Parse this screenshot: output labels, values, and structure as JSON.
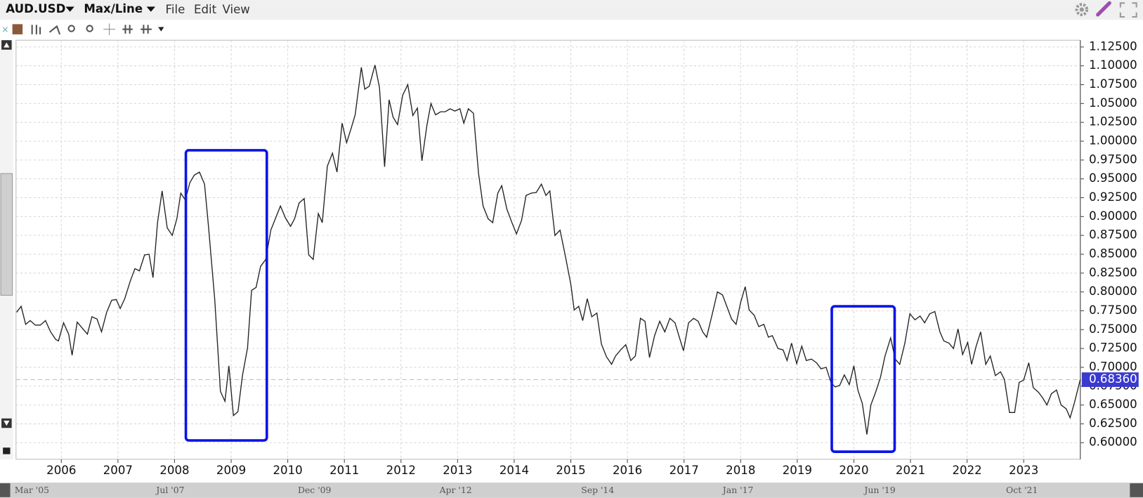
{
  "toolbar": {
    "symbol": "AUD.USD",
    "mode": "Max/Line",
    "menu": [
      "File",
      "Edit",
      "View"
    ]
  },
  "navigator": {
    "labels": [
      "Mar '05",
      "Jul '07",
      "Dec '09",
      "Apr '12",
      "Sep '14",
      "Jan '17",
      "Jun '19",
      "Oct '21"
    ]
  },
  "chart_data": {
    "type": "line",
    "color": "#222222",
    "xlim": [
      2005.2,
      2024.0
    ],
    "ylim": [
      0.578,
      1.134
    ],
    "xticks": [
      2006,
      2007,
      2008,
      2009,
      2010,
      2011,
      2012,
      2013,
      2014,
      2015,
      2016,
      2017,
      2018,
      2019,
      2020,
      2021,
      2022,
      2023
    ],
    "yticks": [
      {
        "value": 0.6,
        "label": "0.60000"
      },
      {
        "value": 0.625,
        "label": "0.62500"
      },
      {
        "value": 0.65,
        "label": "0.65000"
      },
      {
        "value": 0.675,
        "label": "0.67500"
      },
      {
        "value": 0.7,
        "label": "0.70000"
      },
      {
        "value": 0.725,
        "label": "0.72500"
      },
      {
        "value": 0.75,
        "label": "0.75000"
      },
      {
        "value": 0.775,
        "label": "0.77500"
      },
      {
        "value": 0.8,
        "label": "0.80000"
      },
      {
        "value": 0.825,
        "label": "0.82500"
      },
      {
        "value": 0.85,
        "label": "0.85000"
      },
      {
        "value": 0.875,
        "label": "0.87500"
      },
      {
        "value": 0.9,
        "label": "0.90000"
      },
      {
        "value": 0.925,
        "label": "0.92500"
      },
      {
        "value": 0.95,
        "label": "0.95000"
      },
      {
        "value": 0.975,
        "label": "0.97500"
      },
      {
        "value": 1.0,
        "label": "1.00000"
      },
      {
        "value": 1.025,
        "label": "1.02500"
      },
      {
        "value": 1.05,
        "label": "1.05000"
      },
      {
        "value": 1.075,
        "label": "1.07500"
      },
      {
        "value": 1.1,
        "label": "1.10000"
      },
      {
        "value": 1.125,
        "label": "1.12500"
      }
    ],
    "grid": true,
    "last_value": {
      "value": 0.6836,
      "label": "0.68360"
    },
    "last_value_color": "#3a3ad0",
    "highlights": [
      {
        "x": [
          2008.2,
          2009.63
        ],
        "y": [
          0.603,
          0.988
        ]
      },
      {
        "x": [
          2019.61,
          2020.72
        ],
        "y": [
          0.588,
          0.781
        ]
      }
    ],
    "highlight_color": "#0a14e6",
    "x": [
      2005.21,
      2005.29,
      2005.37,
      2005.45,
      2005.54,
      2005.63,
      2005.72,
      2005.81,
      2005.9,
      2005.95,
      2006.04,
      2006.13,
      2006.19,
      2006.28,
      2006.37,
      2006.46,
      2006.54,
      2006.63,
      2006.71,
      2006.8,
      2006.89,
      2006.97,
      2007.04,
      2007.12,
      2007.22,
      2007.3,
      2007.38,
      2007.47,
      2007.55,
      2007.62,
      2007.7,
      2007.78,
      2007.87,
      2007.96,
      2008.04,
      2008.11,
      2008.19,
      2008.27,
      2008.35,
      2008.44,
      2008.53,
      2008.6,
      2008.71,
      2008.81,
      2008.89,
      2008.96,
      2009.04,
      2009.12,
      2009.2,
      2009.29,
      2009.36,
      2009.44,
      2009.52,
      2009.61,
      2009.7,
      2009.78,
      2009.87,
      2009.96,
      2010.05,
      2010.12,
      2010.2,
      2010.29,
      2010.37,
      2010.45,
      2010.54,
      2010.61,
      2010.7,
      2010.79,
      2010.87,
      2010.96,
      2011.04,
      2011.12,
      2011.19,
      2011.3,
      2011.36,
      2011.44,
      2011.54,
      2011.62,
      2011.71,
      2011.79,
      2011.86,
      2011.94,
      2012.03,
      2012.12,
      2012.21,
      2012.29,
      2012.37,
      2012.46,
      2012.53,
      2012.61,
      2012.7,
      2012.78,
      2012.87,
      2012.95,
      2013.04,
      2013.11,
      2013.19,
      2013.28,
      2013.37,
      2013.45,
      2013.54,
      2013.62,
      2013.71,
      2013.78,
      2013.87,
      2013.96,
      2014.04,
      2014.13,
      2014.21,
      2014.3,
      2014.39,
      2014.48,
      2014.56,
      2014.63,
      2014.72,
      2014.81,
      2014.9,
      2015,
      2015.06,
      2015.14,
      2015.21,
      2015.29,
      2015.37,
      2015.46,
      2015.54,
      2015.63,
      2015.72,
      2015.79,
      2015.88,
      2015.97,
      2016.06,
      2016.14,
      2016.23,
      2016.31,
      2016.39,
      2016.48,
      2016.57,
      2016.66,
      2016.75,
      2016.84,
      2016.92,
      2016.99,
      2017.08,
      2017.17,
      2017.25,
      2017.33,
      2017.4,
      2017.5,
      2017.59,
      2017.68,
      2017.75,
      2017.84,
      2017.92,
      2018,
      2018.08,
      2018.15,
      2018.24,
      2018.32,
      2018.41,
      2018.49,
      2018.56,
      2018.66,
      2018.75,
      2018.82,
      2018.9,
      2018.99,
      2019.08,
      2019.16,
      2019.25,
      2019.34,
      2019.42,
      2019.51,
      2019.6,
      2019.67,
      2019.75,
      2019.83,
      2019.92,
      2020,
      2020.07,
      2020.15,
      2020.23,
      2020.3,
      2020.39,
      2020.47,
      2020.55,
      2020.65,
      2020.73,
      2020.81,
      2020.9,
      2020.99,
      2021.08,
      2021.17,
      2021.25,
      2021.34,
      2021.43,
      2021.52,
      2021.59,
      2021.68,
      2021.76,
      2021.84,
      2021.92,
      2022.01,
      2022.08,
      2022.16,
      2022.24,
      2022.33,
      2022.41,
      2022.5,
      2022.59,
      2022.66,
      2022.75,
      2022.84,
      2022.92,
      2023,
      2023.09,
      2023.17,
      2023.26,
      2023.33,
      2023.41,
      2023.49,
      2023.58,
      2023.66,
      2023.75,
      2023.82,
      2023.9,
      2024
    ],
    "values": [
      0.773,
      0.781,
      0.757,
      0.762,
      0.756,
      0.756,
      0.762,
      0.747,
      0.737,
      0.735,
      0.759,
      0.744,
      0.716,
      0.76,
      0.752,
      0.744,
      0.767,
      0.764,
      0.747,
      0.773,
      0.789,
      0.79,
      0.778,
      0.791,
      0.815,
      0.831,
      0.828,
      0.849,
      0.85,
      0.819,
      0.892,
      0.934,
      0.885,
      0.875,
      0.897,
      0.931,
      0.922,
      0.945,
      0.955,
      0.959,
      0.943,
      0.887,
      0.79,
      0.668,
      0.655,
      0.702,
      0.636,
      0.641,
      0.689,
      0.726,
      0.802,
      0.806,
      0.834,
      0.843,
      0.882,
      0.897,
      0.914,
      0.898,
      0.887,
      0.897,
      0.918,
      0.924,
      0.849,
      0.843,
      0.904,
      0.892,
      0.967,
      0.984,
      0.959,
      1.024,
      0.998,
      1.017,
      1.035,
      1.098,
      1.069,
      1.073,
      1.101,
      1.071,
      0.966,
      1.055,
      1.032,
      1.022,
      1.061,
      1.075,
      1.034,
      1.044,
      0.974,
      1.022,
      1.05,
      1.035,
      1.039,
      1.039,
      1.043,
      1.04,
      1.043,
      1.024,
      1.043,
      1.037,
      0.957,
      0.914,
      0.897,
      0.892,
      0.931,
      0.941,
      0.91,
      0.892,
      0.877,
      0.895,
      0.928,
      0.931,
      0.932,
      0.943,
      0.928,
      0.934,
      0.875,
      0.882,
      0.849,
      0.81,
      0.776,
      0.781,
      0.762,
      0.791,
      0.767,
      0.772,
      0.731,
      0.714,
      0.704,
      0.715,
      0.723,
      0.73,
      0.709,
      0.715,
      0.765,
      0.761,
      0.713,
      0.742,
      0.761,
      0.747,
      0.765,
      0.759,
      0.739,
      0.722,
      0.759,
      0.765,
      0.761,
      0.747,
      0.74,
      0.771,
      0.8,
      0.796,
      0.782,
      0.764,
      0.757,
      0.786,
      0.807,
      0.776,
      0.769,
      0.754,
      0.757,
      0.74,
      0.742,
      0.725,
      0.723,
      0.709,
      0.732,
      0.705,
      0.728,
      0.709,
      0.711,
      0.706,
      0.698,
      0.7,
      0.679,
      0.674,
      0.676,
      0.69,
      0.677,
      0.702,
      0.67,
      0.652,
      0.611,
      0.65,
      0.668,
      0.687,
      0.715,
      0.739,
      0.711,
      0.704,
      0.732,
      0.771,
      0.763,
      0.768,
      0.759,
      0.771,
      0.774,
      0.747,
      0.735,
      0.732,
      0.725,
      0.751,
      0.717,
      0.733,
      0.704,
      0.728,
      0.747,
      0.704,
      0.715,
      0.689,
      0.694,
      0.684,
      0.64,
      0.64,
      0.68,
      0.683,
      0.706,
      0.673,
      0.667,
      0.66,
      0.65,
      0.665,
      0.67,
      0.65,
      0.645,
      0.633,
      0.654,
      0.684
    ]
  }
}
